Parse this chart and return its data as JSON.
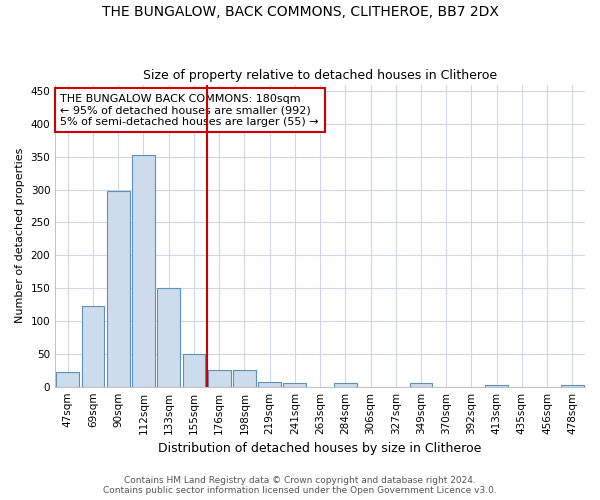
{
  "title_line1": "THE BUNGALOW, BACK COMMONS, CLITHEROE, BB7 2DX",
  "title_line2": "Size of property relative to detached houses in Clitheroe",
  "xlabel": "Distribution of detached houses by size in Clitheroe",
  "ylabel": "Number of detached properties",
  "bar_color": "#ccdcec",
  "bar_edge_color": "#6090b8",
  "categories": [
    "47sqm",
    "69sqm",
    "90sqm",
    "112sqm",
    "133sqm",
    "155sqm",
    "176sqm",
    "198sqm",
    "219sqm",
    "241sqm",
    "263sqm",
    "284sqm",
    "306sqm",
    "327sqm",
    "349sqm",
    "370sqm",
    "392sqm",
    "413sqm",
    "435sqm",
    "456sqm",
    "478sqm"
  ],
  "values": [
    23,
    123,
    298,
    353,
    150,
    50,
    25,
    25,
    7,
    5,
    0,
    6,
    0,
    0,
    5,
    0,
    0,
    2,
    0,
    0,
    3
  ],
  "vline_x": 6.0,
  "vline_color": "#cc0000",
  "annotation_text": "THE BUNGALOW BACK COMMONS: 180sqm\n← 95% of detached houses are smaller (992)\n5% of semi-detached houses are larger (55) →",
  "annotation_box_color": "#ffffff",
  "annotation_box_edge_color": "#cc0000",
  "ylim": [
    0,
    460
  ],
  "yticks": [
    0,
    50,
    100,
    150,
    200,
    250,
    300,
    350,
    400,
    450
  ],
  "footer_line1": "Contains HM Land Registry data © Crown copyright and database right 2024.",
  "footer_line2": "Contains public sector information licensed under the Open Government Licence v3.0.",
  "background_color": "#ffffff",
  "grid_color": "#d0d8e8",
  "title_fontsize": 10,
  "subtitle_fontsize": 9,
  "xlabel_fontsize": 9,
  "ylabel_fontsize": 8,
  "tick_fontsize": 7.5,
  "annotation_fontsize": 8,
  "footer_fontsize": 6.5
}
